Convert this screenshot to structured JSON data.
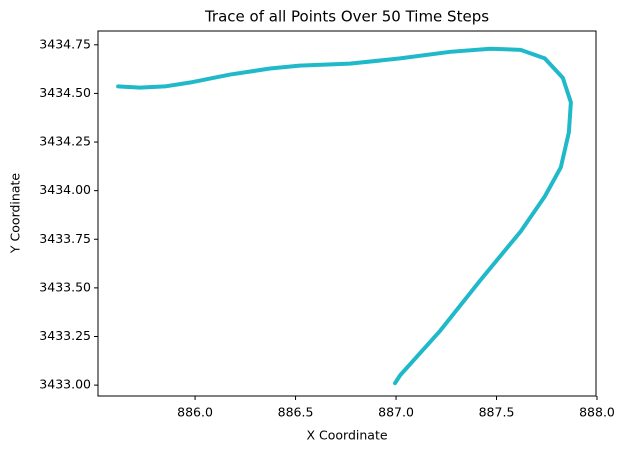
{
  "chart_data": {
    "type": "line",
    "title": "Trace of all Points Over 50 Time Steps",
    "x_label": "X Coordinate",
    "y_label": "Y Coordinate",
    "color": "#1fb9c9",
    "x": [
      885.617,
      885.726,
      885.85,
      885.975,
      886.174,
      886.373,
      886.52,
      886.77,
      887.02,
      887.27,
      887.47,
      887.62,
      887.74,
      887.83,
      887.87,
      887.86,
      887.82,
      887.74,
      887.62,
      887.42,
      887.22,
      887.02,
      886.995
    ],
    "y": [
      3434.536,
      3434.53,
      3434.536,
      3434.556,
      3434.597,
      3434.628,
      3434.643,
      3434.653,
      3434.68,
      3434.714,
      3434.73,
      3434.724,
      3434.68,
      3434.58,
      3434.454,
      3434.3,
      3434.12,
      3433.97,
      3433.79,
      3433.54,
      3433.28,
      3433.05,
      3433.01
    ],
    "xlim": [
      885.517,
      887.995
    ],
    "ylim": [
      3432.944,
      3434.821
    ],
    "xticks": [
      {
        "value": 886,
        "label": "886.0"
      },
      886.5,
      {
        "value": 887,
        "label": "887.0"
      },
      887.5,
      {
        "value": 888,
        "label": "888.0"
      }
    ],
    "yticks": [
      {
        "value": 3433,
        "label": "3433.00"
      },
      3433.25,
      {
        "value": 3433.5,
        "label": "3433.50"
      },
      3433.75,
      {
        "value": 3434,
        "label": "3434.00"
      },
      3434.25,
      {
        "value": 3434.5,
        "label": "3434.50"
      },
      3434.75
    ]
  }
}
